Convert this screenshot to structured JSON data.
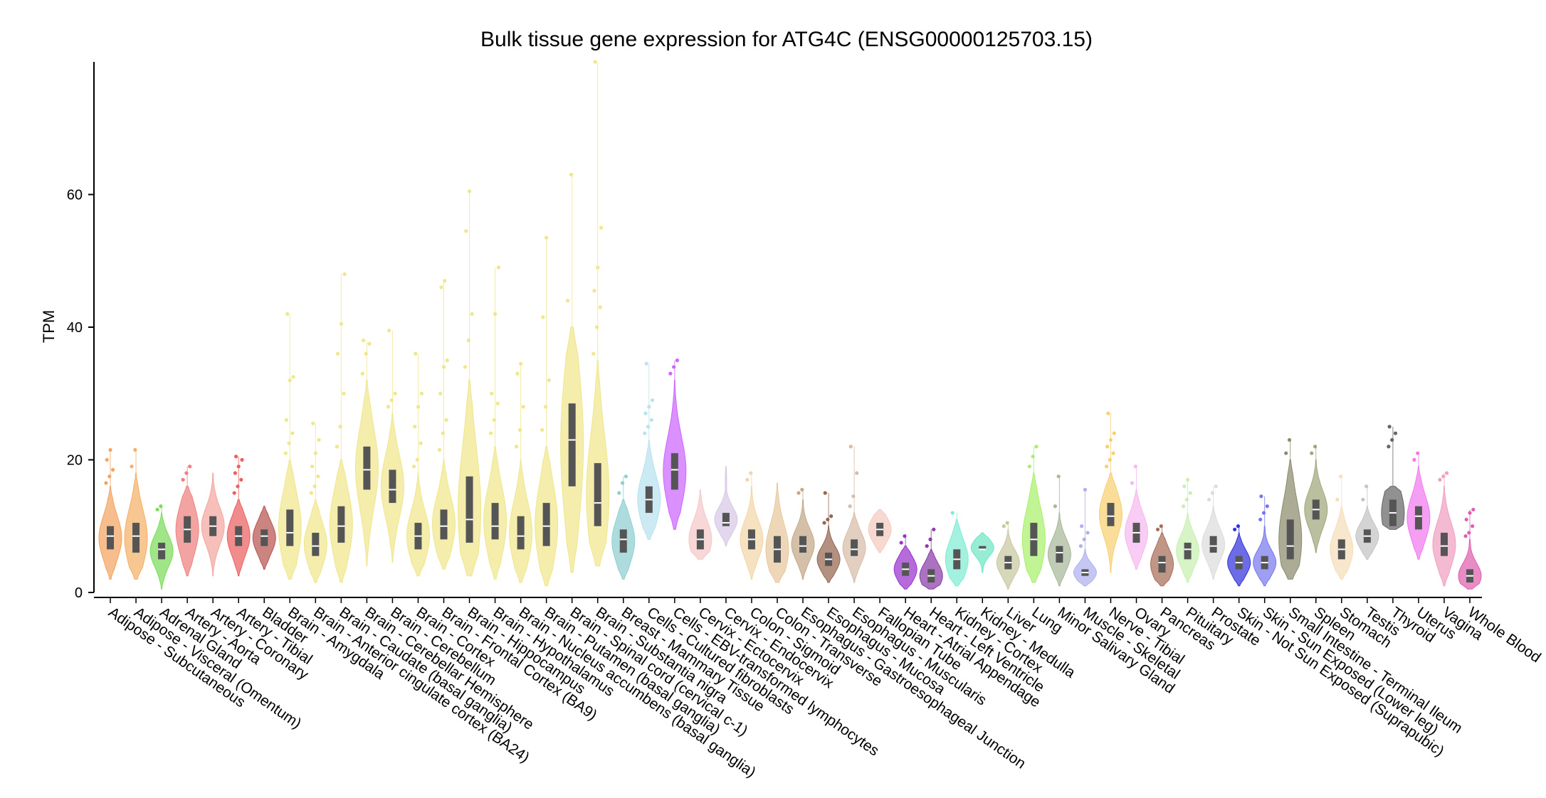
{
  "chart_data": {
    "type": "violin",
    "title": "Bulk tissue gene expression for ATG4C (ENSG00000125703.15)",
    "ylabel": "TPM",
    "xlabel": "",
    "ylim": [
      0,
      80
    ],
    "yticks": [
      0,
      20,
      40,
      60
    ],
    "categories": [
      {
        "name": "Adipose - Subcutaneous",
        "color": "#F4A460",
        "min": 2,
        "q1": 6.5,
        "median": 8.5,
        "q3": 10,
        "max": 16,
        "out": [
          16.5,
          17.5,
          18.5,
          20,
          21.5
        ]
      },
      {
        "name": "Adipose - Visceral (Omentum)",
        "color": "#F4B066",
        "min": 2,
        "q1": 6,
        "median": 8.5,
        "q3": 10.5,
        "max": 18,
        "out": [
          19,
          21.5
        ]
      },
      {
        "name": "Adrenal Gland",
        "color": "#7CDB5A",
        "min": 0.5,
        "q1": 5,
        "median": 6.5,
        "q3": 7.5,
        "max": 12,
        "out": [
          12.5,
          13
        ]
      },
      {
        "name": "Artery - Aorta",
        "color": "#F08080",
        "min": 2.5,
        "q1": 7.5,
        "median": 9.5,
        "q3": 11.5,
        "max": 16,
        "out": [
          17,
          18,
          19
        ]
      },
      {
        "name": "Artery - Coronary",
        "color": "#F4A6A0",
        "min": 2.5,
        "q1": 8.5,
        "median": 10,
        "q3": 11.5,
        "max": 18,
        "out": []
      },
      {
        "name": "Artery - Tibial",
        "color": "#EB6060",
        "min": 2.5,
        "q1": 7,
        "median": 8.5,
        "q3": 10,
        "max": 14,
        "out": [
          15,
          16,
          17,
          18,
          19,
          20,
          20.5
        ]
      },
      {
        "name": "Bladder",
        "color": "#B85450",
        "min": 3.5,
        "q1": 7,
        "median": 8.5,
        "q3": 9.5,
        "max": 13,
        "out": []
      },
      {
        "name": "Brain - Amygdala",
        "color": "#F0E68C",
        "min": 2,
        "q1": 7,
        "median": 9,
        "q3": 12.5,
        "max": 20,
        "out": [
          21,
          22.5,
          24,
          26,
          32,
          32.5,
          42
        ]
      },
      {
        "name": "Brain - Anterior cingulate cortex (BA24)",
        "color": "#F0E68C",
        "min": 1.5,
        "q1": 5.5,
        "median": 7,
        "q3": 9,
        "max": 14,
        "out": [
          15,
          16,
          17.5,
          19,
          21,
          23,
          25.5
        ]
      },
      {
        "name": "Brain - Caudate (basal ganglia)",
        "color": "#F0E68C",
        "min": 1.5,
        "q1": 7.5,
        "median": 10,
        "q3": 13,
        "max": 20,
        "out": [
          22,
          25,
          30,
          36,
          40.5,
          48
        ]
      },
      {
        "name": "Brain - Cerebellar Hemisphere",
        "color": "#F0E68C",
        "min": 4,
        "q1": 15.5,
        "median": 18.5,
        "q3": 22,
        "max": 32,
        "out": [
          33,
          36,
          37.5,
          38
        ]
      },
      {
        "name": "Brain - Cerebellum",
        "color": "#F0E68C",
        "min": 4.5,
        "q1": 13.5,
        "median": 15.5,
        "q3": 18.5,
        "max": 27,
        "out": [
          28,
          29,
          30,
          39.5
        ]
      },
      {
        "name": "Brain - Cortex",
        "color": "#F0E68C",
        "min": 2.5,
        "q1": 6.5,
        "median": 8.5,
        "q3": 10.5,
        "max": 18,
        "out": [
          19,
          20,
          22.5,
          25,
          28,
          30,
          36
        ]
      },
      {
        "name": "Brain - Frontal Cortex (BA9)",
        "color": "#F0E68C",
        "min": 3.5,
        "q1": 8,
        "median": 10,
        "q3": 12.5,
        "max": 20,
        "out": [
          21.5,
          24,
          26,
          30,
          34,
          35,
          46,
          47
        ]
      },
      {
        "name": "Brain - Hippocampus",
        "color": "#F0E68C",
        "min": 2.5,
        "q1": 7.5,
        "median": 11,
        "q3": 17.5,
        "max": 32,
        "out": [
          34,
          38,
          42,
          54.5,
          60.5
        ]
      },
      {
        "name": "Brain - Hypothalamus",
        "color": "#F0E68C",
        "min": 2,
        "q1": 8,
        "median": 10,
        "q3": 13.5,
        "max": 22,
        "out": [
          24,
          26,
          28.5,
          30,
          42,
          49
        ]
      },
      {
        "name": "Brain - Nucleus accumbens (basal ganglia)",
        "color": "#F0E68C",
        "min": 1.5,
        "q1": 6.5,
        "median": 8.5,
        "q3": 11.5,
        "max": 20,
        "out": [
          22,
          24.5,
          28,
          33,
          34.5
        ]
      },
      {
        "name": "Brain - Putamen (basal ganglia)",
        "color": "#F0E68C",
        "min": 1,
        "q1": 7,
        "median": 10,
        "q3": 13.5,
        "max": 22,
        "out": [
          24.5,
          28,
          32,
          41.5,
          53.5
        ]
      },
      {
        "name": "Brain - Spinal cord (cervical c-1)",
        "color": "#F0E68C",
        "min": 3,
        "q1": 16,
        "median": 23,
        "q3": 28.5,
        "max": 40,
        "out": [
          44,
          63
        ]
      },
      {
        "name": "Brain - Substantia nigra",
        "color": "#F0E68C",
        "min": 4,
        "q1": 10,
        "median": 13.5,
        "q3": 19.5,
        "max": 35,
        "out": [
          36,
          40,
          43,
          45.5,
          49,
          55,
          80
        ]
      },
      {
        "name": "Breast - Mammary Tissue",
        "color": "#8FCFD1",
        "min": 2,
        "q1": 6,
        "median": 8,
        "q3": 9.5,
        "max": 14,
        "out": [
          15,
          16.5,
          17.5
        ]
      },
      {
        "name": "Cells - Cultured fibroblasts",
        "color": "#B8E2F0",
        "min": 8,
        "q1": 12,
        "median": 14,
        "q3": 16,
        "max": 23,
        "out": [
          24,
          25,
          26,
          27,
          28,
          29,
          34.5
        ]
      },
      {
        "name": "Cells - EBV-transformed lymphocytes",
        "color": "#CC66FF",
        "min": 9.5,
        "q1": 15.5,
        "median": 18.5,
        "q3": 21,
        "max": 32,
        "out": [
          33,
          34,
          35
        ]
      },
      {
        "name": "Cervix - Ectocervix",
        "color": "#F4C8C8",
        "min": 5,
        "q1": 6.5,
        "median": 8,
        "q3": 9.5,
        "max": 15.5,
        "out": []
      },
      {
        "name": "Cervix - Endocervix",
        "color": "#D8C8E8",
        "min": 7,
        "q1": 10,
        "median": 10.5,
        "q3": 12,
        "max": 19,
        "out": []
      },
      {
        "name": "Colon - Sigmoid",
        "color": "#F2D5A8",
        "min": 2,
        "q1": 6.5,
        "median": 8,
        "q3": 9.5,
        "max": 16,
        "out": [
          17,
          18
        ]
      },
      {
        "name": "Colon - Transverse",
        "color": "#E8C89E",
        "min": 1.5,
        "q1": 4.5,
        "median": 6.5,
        "q3": 8.5,
        "max": 16.5,
        "out": []
      },
      {
        "name": "Esophagus - Gastroesophageal Junction",
        "color": "#C4A888",
        "min": 2,
        "q1": 6,
        "median": 7,
        "q3": 8.5,
        "max": 14,
        "out": [
          15,
          15.5
        ]
      },
      {
        "name": "Esophagus - Mucosa",
        "color": "#946650",
        "min": 1.5,
        "q1": 4,
        "median": 5,
        "q3": 6,
        "max": 10,
        "out": [
          10.5,
          11,
          11.5,
          15
        ]
      },
      {
        "name": "Esophagus - Muscularis",
        "color": "#D8BCA8",
        "min": 1.5,
        "q1": 5.5,
        "median": 6.5,
        "q3": 8,
        "max": 12,
        "out": [
          13,
          14.5,
          18,
          22
        ]
      },
      {
        "name": "Fallopian Tube",
        "color": "#F4CBC0",
        "min": 6,
        "q1": 8.5,
        "median": 9.5,
        "q3": 10.5,
        "max": 12.5,
        "out": []
      },
      {
        "name": "Heart - Atrial Appendage",
        "color": "#9933CC",
        "min": 0.5,
        "q1": 2.5,
        "median": 3.5,
        "q3": 4.5,
        "max": 7,
        "out": [
          7.5,
          8.5
        ]
      },
      {
        "name": "Heart - Left Ventricle",
        "color": "#8B3CA8",
        "min": 0.5,
        "q1": 1.5,
        "median": 2.5,
        "q3": 3.5,
        "max": 6.5,
        "out": [
          7,
          8,
          9.5
        ]
      },
      {
        "name": "Kidney - Cortex",
        "color": "#7FEDD4",
        "min": 1,
        "q1": 3.5,
        "median": 5,
        "q3": 6.5,
        "max": 11,
        "out": [
          12
        ]
      },
      {
        "name": "Kidney - Medulla",
        "color": "#6EE6C4",
        "min": 3,
        "q1": 6.5,
        "median": 6.5,
        "q3": 7,
        "max": 9,
        "out": []
      },
      {
        "name": "Liver",
        "color": "#C8C8A0",
        "min": 0.5,
        "q1": 3.5,
        "median": 4.5,
        "q3": 5.5,
        "max": 9.5,
        "out": [
          10,
          10.5
        ]
      },
      {
        "name": "Lung",
        "color": "#A8F06C",
        "min": 1.5,
        "q1": 5.5,
        "median": 8,
        "q3": 10.5,
        "max": 18,
        "out": [
          19,
          20.5,
          22
        ]
      },
      {
        "name": "Minor Salivary Gland",
        "color": "#A8B89A",
        "min": 1,
        "q1": 4.5,
        "median": 6,
        "q3": 7,
        "max": 12,
        "out": [
          13,
          17.5
        ]
      },
      {
        "name": "Muscle - Skeletal",
        "color": "#B0B0F0",
        "min": 1,
        "q1": 2.5,
        "median": 3,
        "q3": 3.5,
        "max": 6.5,
        "out": [
          7,
          8,
          9,
          10,
          15.5
        ]
      },
      {
        "name": "Nerve - Tibial",
        "color": "#F7D070",
        "min": 3,
        "q1": 10,
        "median": 11.5,
        "q3": 13.5,
        "max": 18,
        "out": [
          19,
          20,
          21,
          22,
          23,
          24,
          27
        ]
      },
      {
        "name": "Ovary",
        "color": "#F5B8F0",
        "min": 3.5,
        "q1": 7.5,
        "median": 9,
        "q3": 10.5,
        "max": 15.5,
        "out": [
          16.5,
          19
        ]
      },
      {
        "name": "Pancreas",
        "color": "#A86E58",
        "min": 1,
        "q1": 3,
        "median": 4.5,
        "q3": 5.5,
        "max": 9,
        "out": [
          9.5,
          10
        ]
      },
      {
        "name": "Pituitary",
        "color": "#C8F0B0",
        "min": 1.5,
        "q1": 5,
        "median": 6.5,
        "q3": 7.5,
        "max": 12,
        "out": [
          13,
          14,
          15,
          16,
          17
        ]
      },
      {
        "name": "Prostate",
        "color": "#DCDCDC",
        "min": 2,
        "q1": 6,
        "median": 7,
        "q3": 8.5,
        "max": 13,
        "out": [
          14,
          15,
          16
        ]
      },
      {
        "name": "Skin - Not Sun Exposed (Suprapubic)",
        "color": "#3333DD",
        "min": 1,
        "q1": 3.5,
        "median": 4.5,
        "q3": 5.5,
        "max": 9,
        "out": [
          9.5,
          10
        ]
      },
      {
        "name": "Skin - Sun Exposed (Lower leg)",
        "color": "#7878EE",
        "min": 1,
        "q1": 3.5,
        "median": 4.5,
        "q3": 5.5,
        "max": 10,
        "out": [
          11,
          12,
          13,
          14.5
        ]
      },
      {
        "name": "Small Intestine - Terminal Ileum",
        "color": "#8C8C6E",
        "min": 2,
        "q1": 5,
        "median": 7,
        "q3": 11,
        "max": 20,
        "out": [
          21,
          23
        ]
      },
      {
        "name": "Spleen",
        "color": "#A0A87A",
        "min": 6,
        "q1": 11,
        "median": 12.5,
        "q3": 14,
        "max": 20,
        "out": [
          21,
          22
        ]
      },
      {
        "name": "Stomach",
        "color": "#F5DEB8",
        "min": 2,
        "q1": 5,
        "median": 6.5,
        "q3": 8,
        "max": 13,
        "out": [
          14,
          17.5
        ]
      },
      {
        "name": "Testis",
        "color": "#C4C4C4",
        "min": 5,
        "q1": 7.5,
        "median": 8.5,
        "q3": 9.5,
        "max": 13,
        "out": [
          14,
          16
        ]
      },
      {
        "name": "Thyroid",
        "color": "#666666",
        "min": 9.5,
        "q1": 10,
        "median": 12,
        "q3": 14,
        "max": 16,
        "out": [
          22,
          23,
          24,
          25
        ]
      },
      {
        "name": "Uterus",
        "color": "#F07AF0",
        "min": 5,
        "q1": 9.5,
        "median": 11.5,
        "q3": 13,
        "max": 19,
        "out": [
          20,
          21
        ]
      },
      {
        "name": "Vagina",
        "color": "#F0A0C0",
        "min": 1,
        "q1": 5.5,
        "median": 7,
        "q3": 9,
        "max": 16,
        "out": [
          17,
          17.5,
          18
        ]
      },
      {
        "name": "Whole Blood",
        "color": "#E060B0",
        "min": 0.5,
        "q1": 1.5,
        "median": 2.5,
        "q3": 3.5,
        "max": 8,
        "out": [
          8.5,
          9,
          10,
          11,
          12,
          12.5
        ]
      }
    ]
  }
}
